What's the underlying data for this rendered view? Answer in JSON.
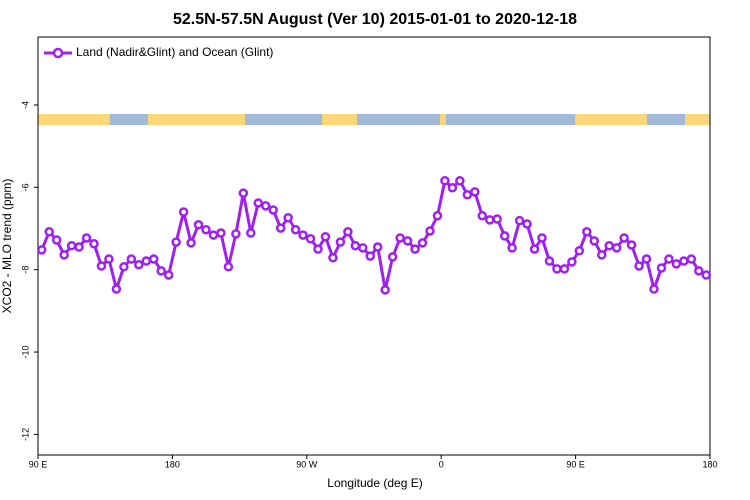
{
  "chart_data": {
    "type": "line",
    "title": "52.5N-57.5N August (Ver 10)   2015-01-01 to 2020-12-18",
    "x_label": "Longitude (deg E)",
    "y_label": "XCO2 - MLO trend (ppm)",
    "xlim": [
      90,
      540
    ],
    "ylim": [
      -12.5,
      -2.35
    ],
    "xticks": [
      {
        "value": 90,
        "label": "90 E"
      },
      {
        "value": 180,
        "label": "180"
      },
      {
        "value": 270,
        "label": "90 W"
      },
      {
        "value": 360,
        "label": "0"
      },
      {
        "value": 450,
        "label": "90 E"
      },
      {
        "value": 540,
        "label": "180"
      }
    ],
    "yticks": [
      -12,
      -10,
      -8,
      -6,
      -4
    ],
    "legend_position": "upper left",
    "x": [
      92.5,
      97.5,
      102.5,
      107.5,
      112.5,
      117.5,
      122.5,
      127.5,
      132.5,
      137.5,
      142.5,
      147.5,
      152.5,
      157.5,
      162.5,
      167.5,
      172.5,
      177.5,
      182.5,
      187.5,
      192.5,
      197.5,
      202.5,
      207.5,
      212.5,
      217.5,
      222.5,
      227.5,
      232.5,
      237.5,
      242.5,
      247.5,
      252.5,
      257.5,
      262.5,
      267.5,
      272.5,
      277.5,
      282.5,
      287.5,
      292.5,
      297.5,
      302.5,
      307.5,
      312.5,
      317.5,
      322.5,
      327.5,
      332.5,
      337.5,
      342.5,
      347.5,
      352.5,
      357.5,
      362.5,
      367.5,
      372.5,
      377.5,
      382.5,
      387.5,
      392.5,
      397.5,
      402.5,
      407.5,
      412.5,
      417.5,
      422.5,
      427.5,
      432.5,
      437.5,
      442.5,
      447.5,
      452.5,
      457.5,
      462.5,
      467.5,
      472.5,
      477.5,
      482.5,
      487.5,
      492.5,
      497.5,
      502.5,
      507.5,
      512.5,
      517.5,
      522.5,
      527.5,
      532.5,
      537.5
    ],
    "series": [
      {
        "name": "Land (Nadir&Glint) and Ocean (Glint)",
        "color": "#a020f0",
        "values": [
          -7.52,
          -7.08,
          -7.28,
          -7.64,
          -7.42,
          -7.45,
          -7.23,
          -7.37,
          -7.91,
          -7.74,
          -8.47,
          -7.93,
          -7.74,
          -7.88,
          -7.79,
          -7.74,
          -8.03,
          -8.13,
          -7.33,
          -6.6,
          -7.35,
          -6.91,
          -7.03,
          -7.16,
          -7.11,
          -7.93,
          -7.13,
          -6.14,
          -7.11,
          -6.38,
          -6.45,
          -6.55,
          -6.99,
          -6.74,
          -7.03,
          -7.16,
          -7.25,
          -7.5,
          -7.2,
          -7.71,
          -7.33,
          -7.08,
          -7.42,
          -7.47,
          -7.67,
          -7.45,
          -8.49,
          -7.69,
          -7.23,
          -7.3,
          -7.5,
          -7.35,
          -7.06,
          -6.69,
          -5.84,
          -6.01,
          -5.84,
          -6.18,
          -6.11,
          -6.69,
          -6.79,
          -6.77,
          -7.18,
          -7.47,
          -6.81,
          -6.89,
          -7.5,
          -7.23,
          -7.79,
          -7.98,
          -7.98,
          -7.81,
          -7.54,
          -7.08,
          -7.3,
          -7.64,
          -7.42,
          -7.47,
          -7.23,
          -7.4,
          -7.91,
          -7.74,
          -8.47,
          -7.96,
          -7.74,
          -7.86,
          -7.79,
          -7.74,
          -8.03,
          -8.13
        ]
      }
    ]
  }
}
